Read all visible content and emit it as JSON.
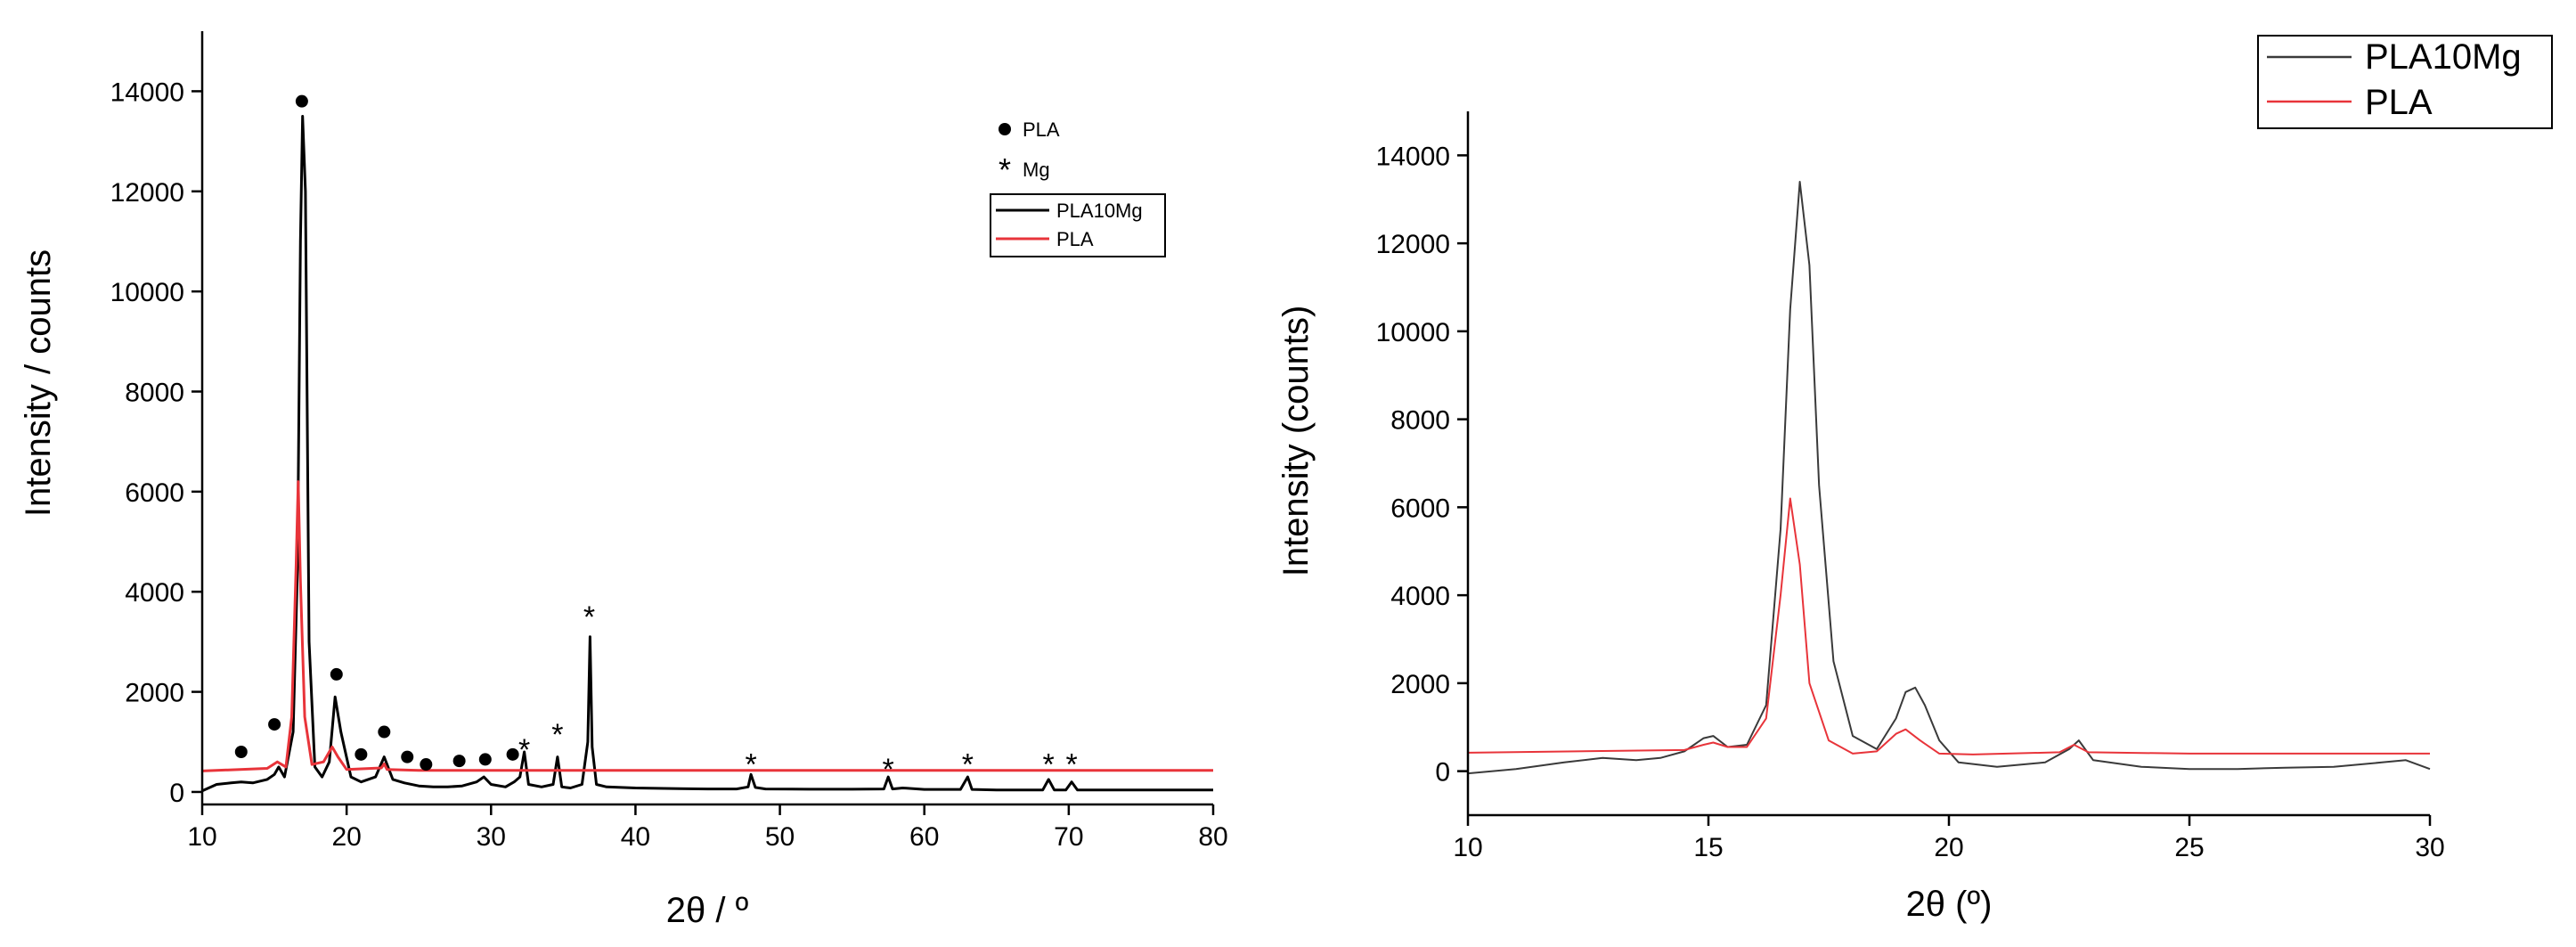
{
  "chart_data": [
    {
      "type": "line",
      "xlabel": "2θ / º",
      "ylabel": "Intensity / counts",
      "xlim": [
        10,
        80
      ],
      "ylim": [
        -250,
        15200
      ],
      "xticks": [
        10,
        20,
        30,
        40,
        50,
        60,
        70,
        80
      ],
      "yticks": [
        0,
        2000,
        4000,
        6000,
        8000,
        10000,
        12000,
        14000
      ],
      "grid": false,
      "legend_position": "upper-right",
      "marker_legend": [
        {
          "symbol": "●",
          "label": "PLA"
        },
        {
          "symbol": "*",
          "label": "Mg"
        }
      ],
      "series": [
        {
          "name": "PLA10Mg",
          "color": "#000000",
          "x": [
            10,
            11,
            12,
            12.7,
            13.5,
            14.5,
            15,
            15.3,
            15.7,
            16.3,
            16.6,
            16.8,
            16.95,
            17.15,
            17.4,
            17.8,
            18.3,
            18.8,
            19.2,
            19.6,
            20.3,
            21,
            22,
            22.6,
            23.2,
            24,
            25,
            26,
            27,
            28,
            29,
            29.5,
            30,
            31,
            31.6,
            32,
            32.3,
            32.6,
            33.5,
            34.3,
            34.6,
            34.9,
            35.5,
            36.3,
            36.7,
            36.85,
            37,
            37.3,
            38,
            39,
            40,
            41,
            42,
            43,
            45,
            47,
            47.8,
            48,
            48.3,
            49,
            52,
            55,
            57.2,
            57.5,
            57.8,
            58.5,
            60,
            62.5,
            63,
            63.3,
            65,
            68.2,
            68.6,
            69,
            69.8,
            70.2,
            70.6,
            72,
            75,
            80
          ],
          "y": [
            20,
            150,
            180,
            200,
            180,
            250,
            350,
            500,
            300,
            1200,
            4500,
            11000,
            13500,
            12000,
            3000,
            500,
            300,
            600,
            1900,
            1200,
            300,
            200,
            300,
            700,
            250,
            180,
            120,
            100,
            100,
            120,
            200,
            300,
            150,
            100,
            200,
            300,
            800,
            150,
            100,
            150,
            700,
            100,
            80,
            150,
            1000,
            3100,
            900,
            150,
            100,
            90,
            80,
            75,
            70,
            65,
            60,
            60,
            100,
            350,
            90,
            60,
            55,
            55,
            60,
            300,
            60,
            80,
            50,
            50,
            300,
            50,
            40,
            40,
            250,
            40,
            40,
            200,
            40,
            40,
            40,
            40
          ]
        },
        {
          "name": "PLA",
          "color": "#e8343a",
          "x": [
            10,
            14.5,
            15.2,
            15.8,
            16.2,
            16.5,
            16.65,
            16.8,
            17.1,
            17.6,
            18.4,
            19.0,
            19.4,
            20.0,
            22.4,
            22.6,
            22.8,
            25,
            40,
            60,
            80
          ],
          "y": [
            420,
            470,
            600,
            500,
            1500,
            4500,
            6200,
            4200,
            1500,
            550,
            600,
            900,
            700,
            450,
            480,
            560,
            450,
            430,
            430,
            430,
            430
          ]
        }
      ],
      "annotations": [
        {
          "symbol": "●",
          "x": 12.7,
          "y": 800
        },
        {
          "symbol": "●",
          "x": 15.0,
          "y": 1350
        },
        {
          "symbol": "●",
          "x": 16.9,
          "y": 13800
        },
        {
          "symbol": "●",
          "x": 19.3,
          "y": 2350
        },
        {
          "symbol": "●",
          "x": 21.0,
          "y": 750
        },
        {
          "symbol": "●",
          "x": 22.6,
          "y": 1200
        },
        {
          "symbol": "●",
          "x": 24.2,
          "y": 700
        },
        {
          "symbol": "●",
          "x": 25.5,
          "y": 550
        },
        {
          "symbol": "●",
          "x": 27.8,
          "y": 620
        },
        {
          "symbol": "●",
          "x": 29.6,
          "y": 650
        },
        {
          "symbol": "●",
          "x": 31.5,
          "y": 750
        },
        {
          "symbol": "*",
          "x": 32.3,
          "y": 1000
        },
        {
          "symbol": "*",
          "x": 34.6,
          "y": 1300
        },
        {
          "symbol": "*",
          "x": 36.8,
          "y": 3650
        },
        {
          "symbol": "*",
          "x": 48.0,
          "y": 700
        },
        {
          "symbol": "*",
          "x": 57.5,
          "y": 600
        },
        {
          "symbol": "*",
          "x": 63.0,
          "y": 700
        },
        {
          "symbol": "*",
          "x": 68.6,
          "y": 700
        },
        {
          "symbol": "*",
          "x": 70.2,
          "y": 700
        }
      ]
    },
    {
      "type": "line",
      "xlabel": "2θ (º)",
      "ylabel": "Intensity (counts)",
      "xlim": [
        10,
        30
      ],
      "ylim": [
        -1000,
        15000
      ],
      "xticks": [
        10,
        15,
        20,
        25,
        30
      ],
      "yticks": [
        0,
        2000,
        4000,
        6000,
        8000,
        10000,
        12000,
        14000
      ],
      "grid": false,
      "legend_position": "top-right",
      "series": [
        {
          "name": "PLA10Mg",
          "color": "#3a3a3a",
          "x": [
            10,
            11,
            12,
            12.8,
            13.5,
            14,
            14.5,
            14.9,
            15.1,
            15.4,
            15.8,
            16.2,
            16.5,
            16.7,
            16.9,
            17.1,
            17.3,
            17.6,
            18.0,
            18.5,
            18.9,
            19.1,
            19.3,
            19.5,
            19.8,
            20.2,
            21,
            22,
            22.5,
            22.7,
            23,
            24,
            25,
            26,
            27,
            28,
            29,
            29.5,
            30
          ],
          "y": [
            -50,
            50,
            200,
            300,
            250,
            300,
            450,
            750,
            800,
            550,
            600,
            1500,
            5500,
            10500,
            13400,
            11500,
            6500,
            2500,
            800,
            500,
            1200,
            1800,
            1900,
            1500,
            700,
            200,
            100,
            200,
            500,
            700,
            250,
            100,
            50,
            50,
            80,
            100,
            200,
            250,
            50
          ]
        },
        {
          "name": "PLA",
          "color": "#e8343a",
          "x": [
            10,
            14.5,
            14.9,
            15.1,
            15.4,
            15.8,
            16.2,
            16.5,
            16.7,
            16.9,
            17.1,
            17.5,
            18,
            18.5,
            18.9,
            19.1,
            19.4,
            19.8,
            20.5,
            22.3,
            22.6,
            22.9,
            25,
            30
          ],
          "y": [
            420,
            480,
            600,
            650,
            550,
            550,
            1200,
            4000,
            6200,
            4700,
            2000,
            700,
            400,
            450,
            850,
            950,
            700,
            400,
            380,
            430,
            600,
            430,
            400,
            400
          ]
        }
      ]
    }
  ]
}
